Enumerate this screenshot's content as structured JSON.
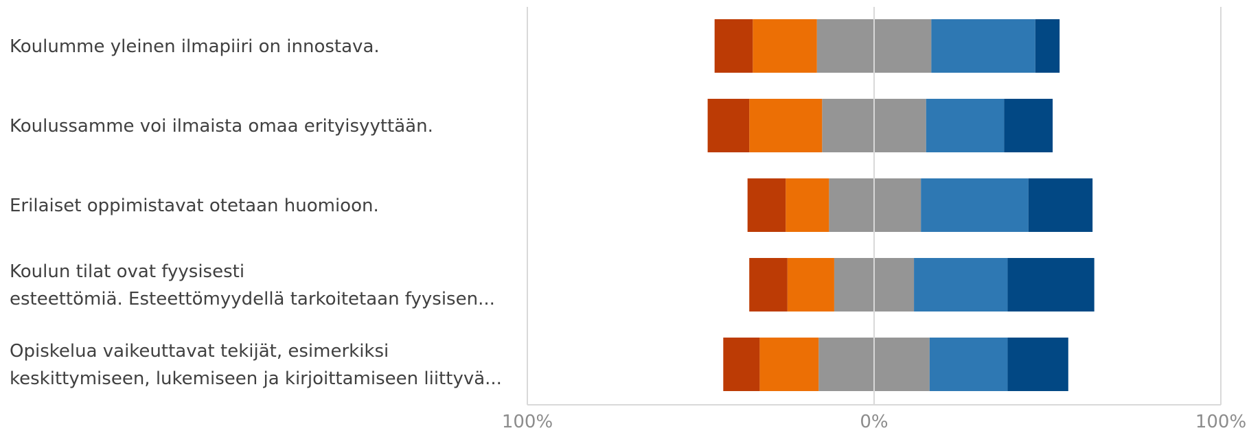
{
  "chart_data": {
    "type": "bar",
    "orientation": "horizontal",
    "stacked": true,
    "diverging": true,
    "title": "",
    "xlabel": "",
    "ylabel": "",
    "xlim": [
      -100,
      100
    ],
    "x_tick_labels": [
      "100%",
      "0%",
      "100%"
    ],
    "grid": true,
    "legend": "none",
    "categories": [
      [
        "Koulumme yleinen ilmapiiri on innostava."
      ],
      [
        "Koulussamme voi ilmaista omaa erityisyyttään."
      ],
      [
        "Erilaiset oppimistavat otetaan huomioon."
      ],
      [
        "Koulun tilat ovat fyysisesti",
        "esteettömiä. Esteettömyydellä tarkoitetaan fyysisen..."
      ],
      [
        "Opiskelua vaikeuttavat tekijät, esimerkiksi",
        "keskittymiseen, lukemiseen ja kirjoittamiseen liittyvä..."
      ]
    ],
    "series": [
      {
        "color": "#bc3b05",
        "direction": "negative",
        "values": [
          11,
          12,
          11,
          11,
          10.5
        ]
      },
      {
        "color": "#ec6f05",
        "direction": "negative",
        "values": [
          18.5,
          21,
          12.5,
          13.5,
          17
        ]
      },
      {
        "color": "#959595",
        "direction": "negative",
        "values": [
          16.5,
          15,
          13,
          11.5,
          16
        ]
      },
      {
        "color": "#959595",
        "direction": "positive",
        "values": [
          16.5,
          15,
          13.5,
          11.5,
          16
        ]
      },
      {
        "color": "#2e78b3",
        "direction": "positive",
        "values": [
          30,
          22.5,
          31,
          27,
          22.5
        ]
      },
      {
        "color": "#024884",
        "direction": "positive",
        "values": [
          7,
          14,
          18.5,
          25,
          17.5
        ]
      }
    ]
  }
}
